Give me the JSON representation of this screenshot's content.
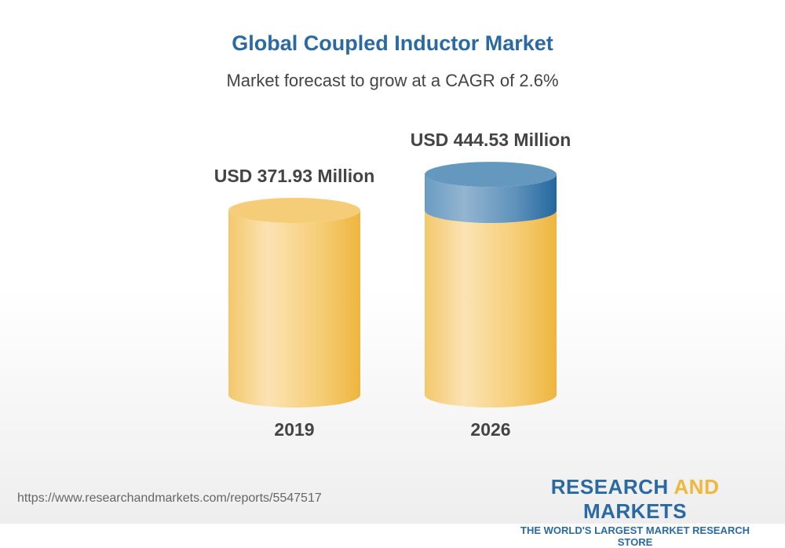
{
  "title": "Global Coupled Inductor Market",
  "subtitle": "Market forecast to grow at a CAGR of 2.6%",
  "chart_data": {
    "type": "bar",
    "style": "3d-cylinder",
    "categories": [
      "2019",
      "2026"
    ],
    "values": [
      371.93,
      444.53
    ],
    "data_labels": [
      "USD 371.93 Million",
      "USD 444.53 Million"
    ],
    "colors": {
      "base": "#f2c15a",
      "growth": "#4f87b6"
    }
  },
  "footer": {
    "url": "https://www.researchandmarkets.com/reports/5547517",
    "logo_part1": "RESEARCH ",
    "logo_part2": "AND",
    "logo_part3": " MARKETS",
    "tagline": "THE WORLD'S LARGEST MARKET RESEARCH STORE"
  }
}
